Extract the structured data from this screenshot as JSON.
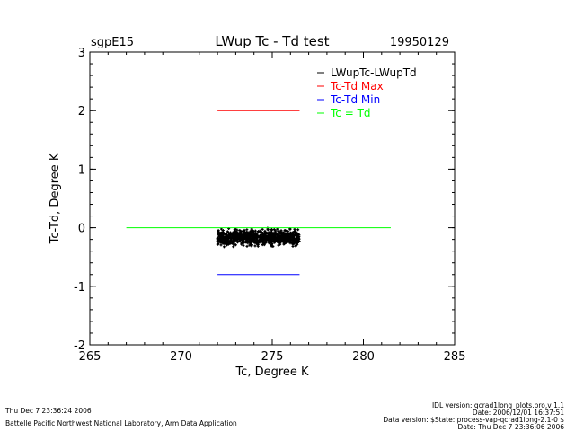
{
  "chart_data": {
    "type": "scatter",
    "site": "sgpE15",
    "title": "LWup Tc - Td test",
    "date": "19950129",
    "xlabel": "Tc, Degree K",
    "ylabel": "Tc-Td, Degree K",
    "xlim": [
      265,
      285
    ],
    "ylim": [
      -2,
      3
    ],
    "xticks": [
      265,
      270,
      275,
      280,
      285
    ],
    "yticks": [
      -2,
      -1,
      0,
      1,
      2,
      3
    ],
    "legend_position": "top-right",
    "series": [
      {
        "name": "LWupTc-LWupTd",
        "color": "#000000",
        "kind": "scatter",
        "x_range": [
          272.0,
          276.5
        ],
        "y_range": [
          -0.33,
          0.03
        ],
        "y_center": -0.17
      },
      {
        "name": "Tc-Td Max",
        "color": "#ff0000",
        "kind": "hline",
        "y": 2.0,
        "x": [
          272.0,
          276.5
        ]
      },
      {
        "name": "Tc-Td Min",
        "color": "#0000ff",
        "kind": "hline",
        "y": -0.8,
        "x": [
          272.0,
          276.5
        ]
      },
      {
        "name": "Tc = Td",
        "color": "#00ff00",
        "kind": "hline",
        "y": 0.0,
        "x": [
          267.0,
          281.5
        ]
      }
    ]
  },
  "footer": {
    "timestamp": "Thu Dec  7 23:36:24 2006",
    "lab": "Battelle Pacific Northwest National Laboratory, Arm Data Application",
    "idl_version": "IDL version: qcrad1long_plots.pro,v 1.1",
    "date_line": "Date: 2006/12/01 16:37:51",
    "data_version": "Data version: $State: process-vap-qcrad1long-2.1-0 $",
    "run_date": "Date: Thu Dec  7 23:36:06 2006"
  }
}
